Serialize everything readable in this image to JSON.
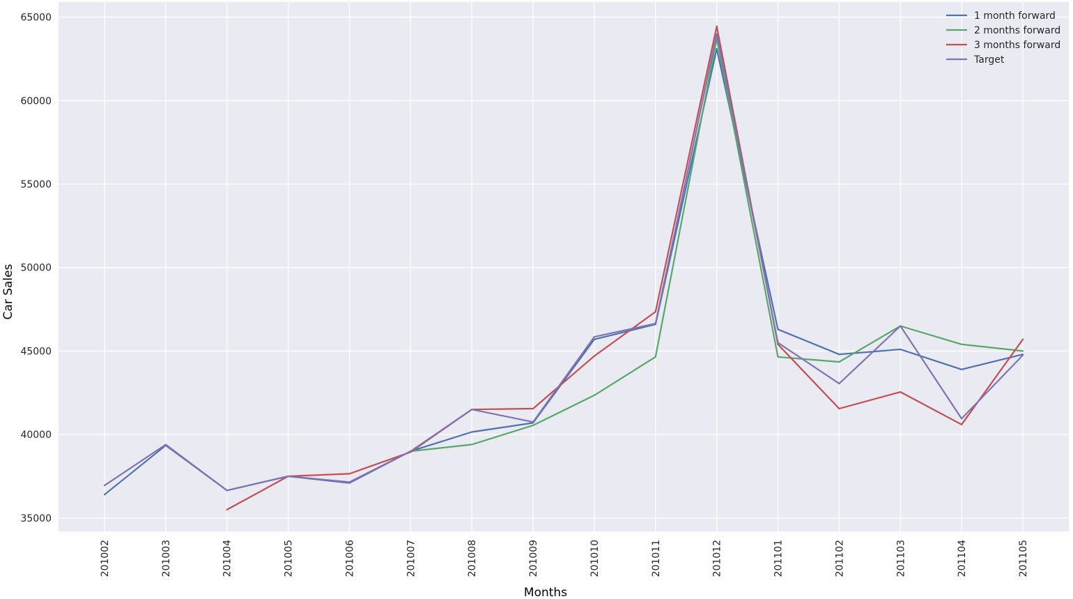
{
  "chart_data": {
    "type": "line",
    "xlabel": "Months",
    "ylabel": "Car Sales",
    "categories": [
      "201002",
      "201003",
      "201004",
      "201005",
      "201006",
      "201007",
      "201008",
      "201009",
      "201010",
      "201011",
      "201012",
      "201101",
      "201102",
      "201103",
      "201104",
      "201105"
    ],
    "ylim": [
      34200,
      65900
    ],
    "yticks": [
      35000,
      40000,
      45000,
      50000,
      55000,
      60000,
      65000
    ],
    "grid": true,
    "legend_position": "top-right",
    "background_color": "#EAEAF2",
    "grid_color": "#FFFFFF",
    "series": [
      {
        "name": "1 month forward",
        "color": "#4C72B0",
        "values": [
          36400,
          39350,
          36650,
          37500,
          37100,
          39000,
          40150,
          40700,
          45700,
          46600,
          63100,
          46300,
          44800,
          45100,
          43900,
          44800
        ]
      },
      {
        "name": "2 months forward",
        "color": "#55A868",
        "values": [
          null,
          null,
          null,
          null,
          null,
          39000,
          39400,
          40550,
          42350,
          44650,
          63700,
          44650,
          44350,
          46500,
          45400,
          45000
        ]
      },
      {
        "name": "3 months forward",
        "color": "#C44E52",
        "values": [
          null,
          null,
          35500,
          37500,
          37650,
          38950,
          41500,
          41550,
          44700,
          47350,
          64450,
          45400,
          41550,
          42550,
          40600,
          45700
        ]
      },
      {
        "name": "Target",
        "color": "#8172B2",
        "values": [
          36950,
          39400,
          36650,
          37500,
          37150,
          39000,
          41500,
          40750,
          45850,
          46650,
          64000,
          45500,
          43050,
          46500,
          40950,
          44750
        ]
      }
    ]
  }
}
